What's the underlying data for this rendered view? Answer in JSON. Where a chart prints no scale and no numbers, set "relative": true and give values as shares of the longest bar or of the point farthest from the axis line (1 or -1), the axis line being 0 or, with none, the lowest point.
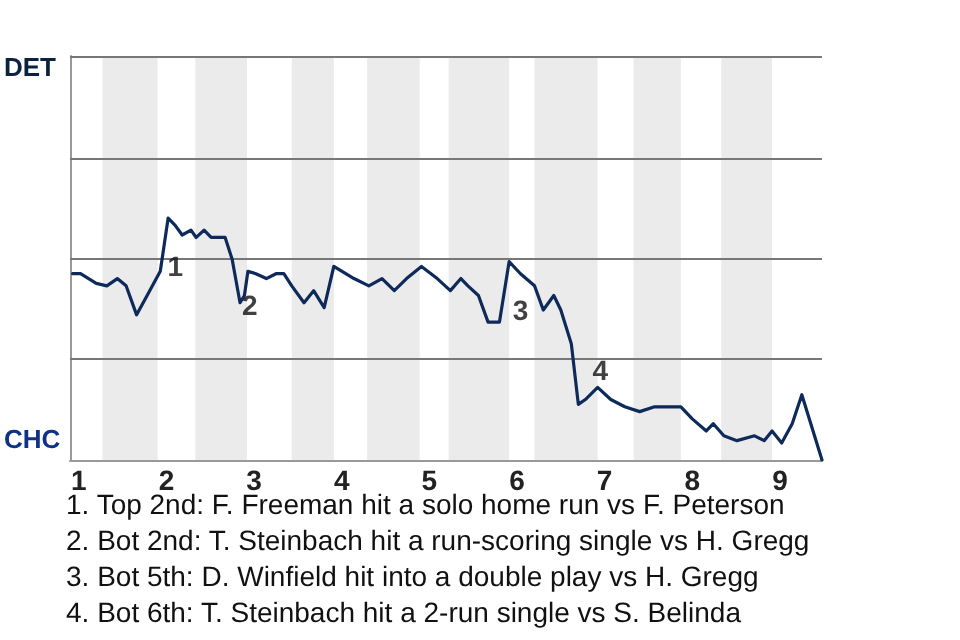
{
  "chart_data": {
    "type": "line",
    "relative": true,
    "x": [
      0.93,
      1.02,
      1.2,
      1.32,
      1.44,
      1.54,
      1.66,
      1.78,
      1.93,
      2.02,
      2.1,
      2.18,
      2.28,
      2.34,
      2.43,
      2.51,
      2.67,
      2.75,
      2.84,
      2.89,
      2.93,
      3.02,
      3.14,
      3.25,
      3.34,
      3.43,
      3.57,
      3.68,
      3.8,
      3.91,
      4.14,
      4.31,
      4.46,
      4.6,
      4.74,
      4.91,
      5.09,
      5.24,
      5.36,
      5.44,
      5.56,
      5.67,
      5.8,
      5.91,
      6.04,
      6.2,
      6.3,
      6.42,
      6.5,
      6.62,
      6.7,
      6.78,
      6.92,
      7.07,
      7.23,
      7.4,
      7.57,
      7.87,
      8,
      8.16,
      8.24,
      8.36,
      8.51,
      8.71,
      8.82,
      8.91,
      9.02,
      9.14,
      9.25,
      9.48
    ],
    "series": [
      {
        "color": "#0e2a5a",
        "values": [
          0.77,
          0.77,
          0.73,
          0.72,
          0.75,
          0.72,
          0.6,
          0.68,
          0.78,
          1,
          0.97,
          0.93,
          0.95,
          0.92,
          0.95,
          0.92,
          0.92,
          0.83,
          0.65,
          0.68,
          0.78,
          0.77,
          0.75,
          0.77,
          0.77,
          0.72,
          0.65,
          0.7,
          0.63,
          0.8,
          0.75,
          0.72,
          0.75,
          0.7,
          0.75,
          0.8,
          0.75,
          0.7,
          0.75,
          0.72,
          0.68,
          0.57,
          0.57,
          0.82,
          0.77,
          0.72,
          0.62,
          0.68,
          0.62,
          0.48,
          0.23,
          0.25,
          0.3,
          0.25,
          0.22,
          0.2,
          0.22,
          0.22,
          0.17,
          0.12,
          0.15,
          0.1,
          0.08,
          0.1,
          0.08,
          0.12,
          0.07,
          0.15,
          0.27,
          0
        ]
      }
    ],
    "xlim": [
      0.9,
      9.48
    ],
    "xticks": [
      1,
      2,
      3,
      4,
      5,
      6,
      7,
      8,
      9
    ],
    "marker": "none",
    "line_style": "solid",
    "ref_lines": [
      {
        "axis": "y",
        "value": 0.42,
        "color": "#777777",
        "line_style": "solid"
      },
      {
        "axis": "y",
        "value": 0.83,
        "color": "#777777",
        "line_style": "solid"
      },
      {
        "axis": "y",
        "value": 1.25,
        "color": "#777777",
        "line_style": "solid"
      },
      {
        "axis": "y",
        "value": 1.67,
        "color": "#777777",
        "line_style": "solid"
      }
    ],
    "bands": [
      {
        "axis": "x",
        "from": 1.27,
        "to": 1.9,
        "color": "#ebebeb"
      },
      {
        "axis": "x",
        "from": 2.33,
        "to": 2.92,
        "color": "#ebebeb"
      },
      {
        "axis": "x",
        "from": 3.43,
        "to": 3.91,
        "color": "#ebebeb"
      },
      {
        "axis": "x",
        "from": 4.29,
        "to": 4.89,
        "color": "#ebebeb"
      },
      {
        "axis": "x",
        "from": 5.22,
        "to": 5.91,
        "color": "#ebebeb"
      },
      {
        "axis": "x",
        "from": 6.2,
        "to": 6.92,
        "color": "#ebebeb"
      },
      {
        "axis": "x",
        "from": 7.33,
        "to": 7.87,
        "color": "#ebebeb"
      },
      {
        "axis": "x",
        "from": 8.33,
        "to": 8.91,
        "color": "#ebebeb"
      }
    ],
    "annotations": [
      {
        "text": "1",
        "x": 1.99,
        "y": 0.8
      },
      {
        "text": "2",
        "x": 2.84,
        "y": 0.64
      },
      {
        "text": "3",
        "x": 5.93,
        "y": 0.62
      },
      {
        "text": "4",
        "x": 6.84,
        "y": 0.37
      },
      "DET",
      "CHC",
      "1. Top 2nd: F. Freeman hit a solo home run vs F. Peterson",
      "2. Bot 2nd: T. Steinbach hit a run-scoring single vs H. Gregg",
      "3. Bot 5th: D. Winfield hit into a double play vs H. Gregg",
      "4. Bot 6th: T. Steinbach hit a 2-run single vs S. Belinda"
    ]
  }
}
